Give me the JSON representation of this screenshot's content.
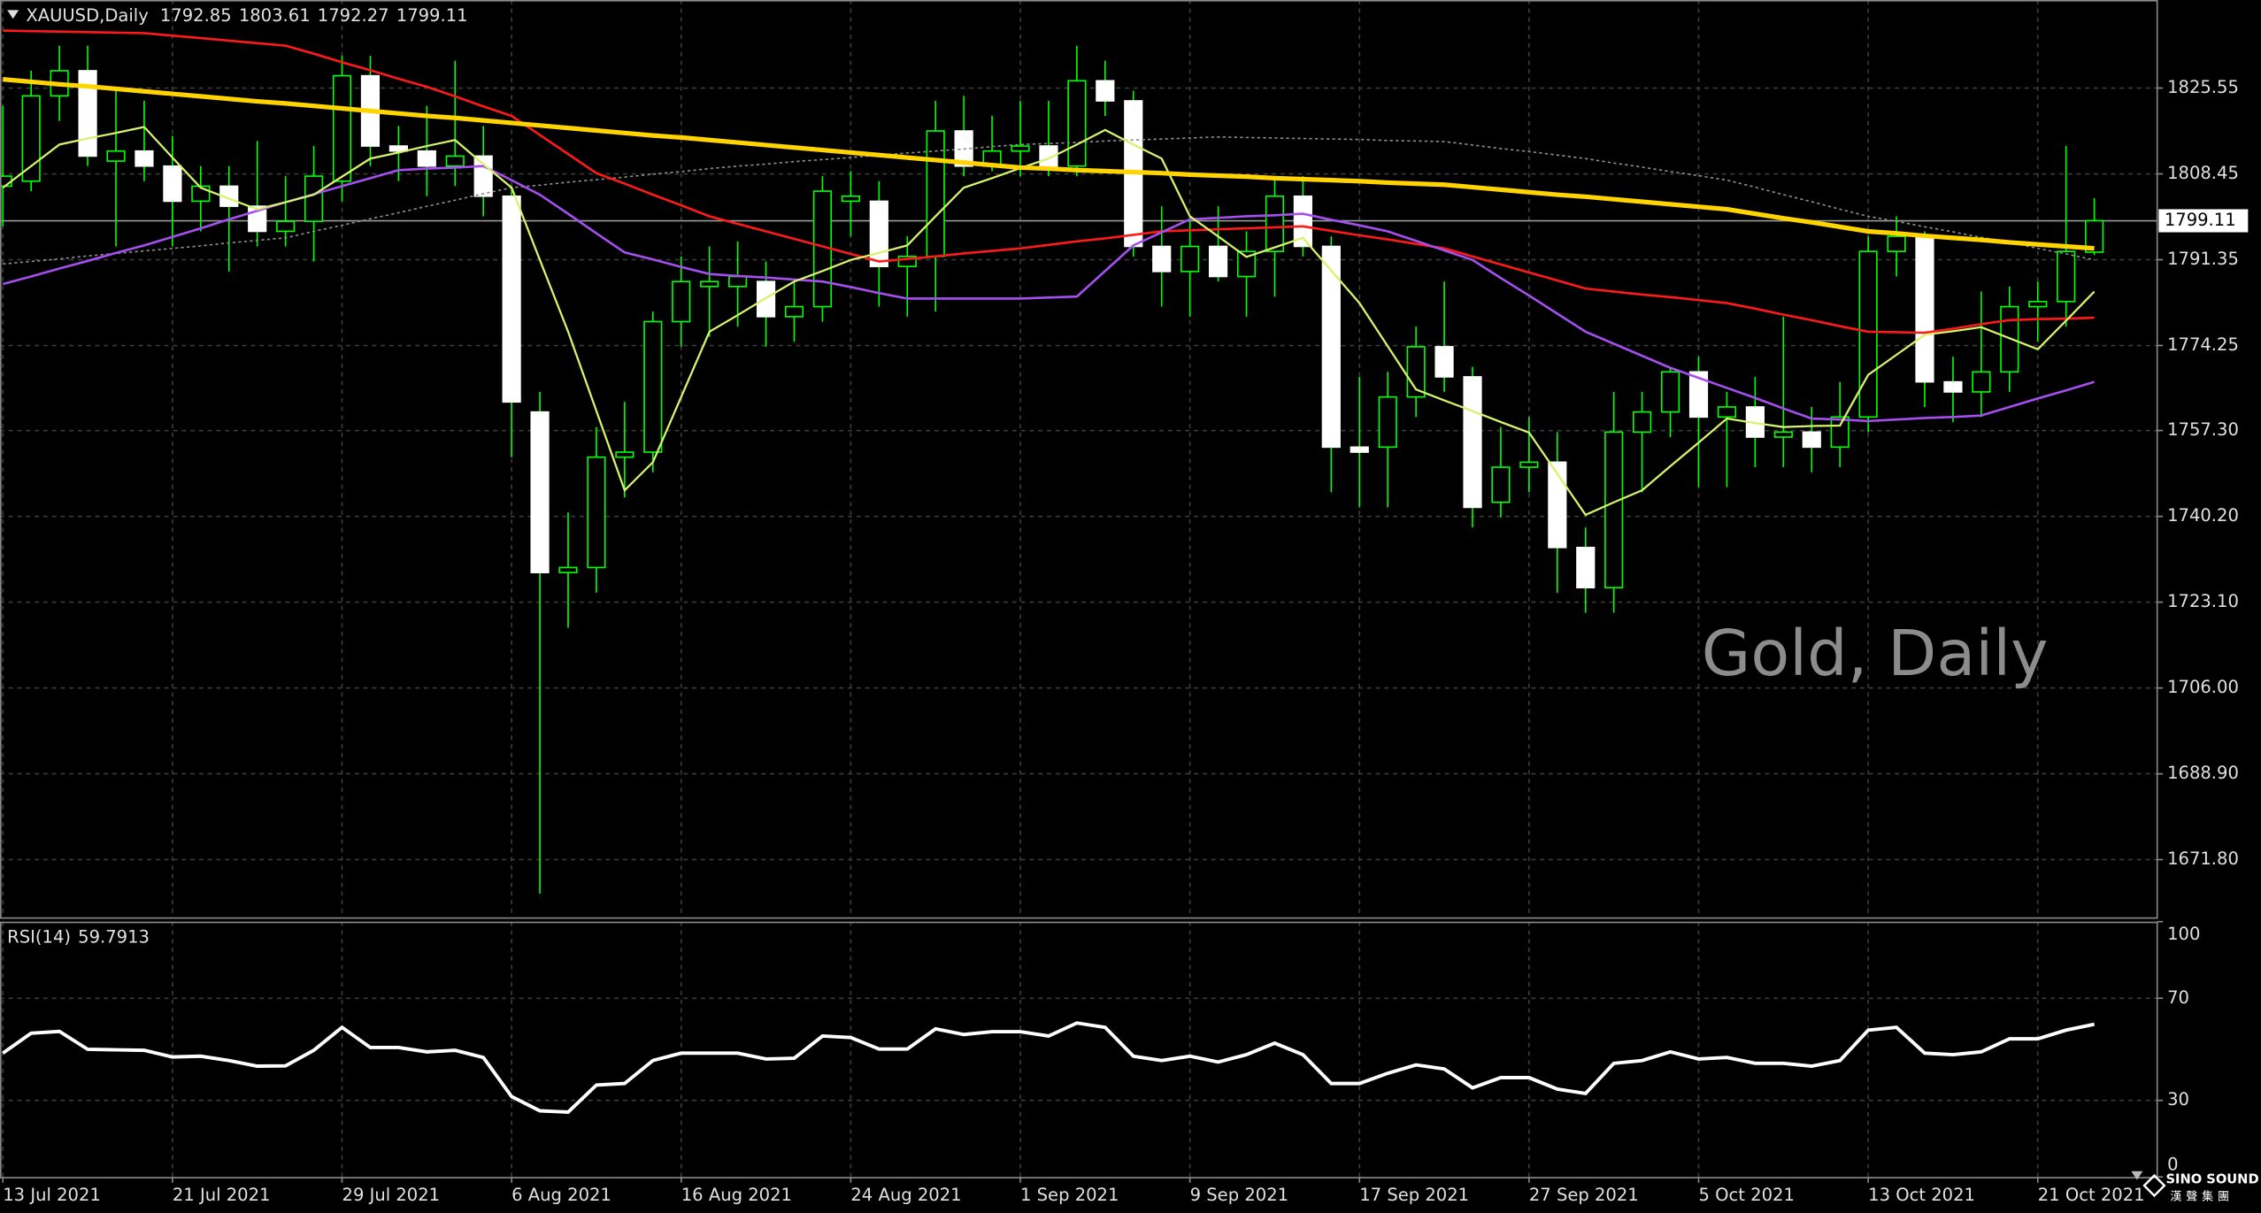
{
  "chart_data": [
    {
      "type": "candlestick",
      "title": "XAUUSD,Daily",
      "annotation": "Gold, Daily",
      "categories": [
        "13 Jul 2021",
        null,
        null,
        null,
        null,
        null,
        "21 Jul 2021",
        null,
        null,
        null,
        null,
        null,
        "29 Jul 2021",
        null,
        null,
        null,
        null,
        null,
        "6 Aug 2021",
        null,
        null,
        null,
        null,
        null,
        "16 Aug 2021",
        null,
        null,
        null,
        null,
        null,
        "24 Aug 2021",
        null,
        null,
        null,
        null,
        null,
        "1 Sep 2021",
        null,
        null,
        null,
        null,
        null,
        "9 Sep 2021",
        null,
        null,
        null,
        null,
        null,
        "17 Sep 2021",
        null,
        null,
        null,
        null,
        null,
        "27 Sep 2021",
        null,
        null,
        null,
        null,
        null,
        "5 Oct 2021",
        null,
        null,
        null,
        null,
        null,
        "13 Oct 2021",
        null,
        null,
        null,
        null,
        null,
        "21 Oct 2021",
        null,
        null
      ],
      "open": [
        1806,
        1807,
        1824,
        1829,
        1811,
        1813,
        1810,
        1803,
        1806,
        1802,
        1797,
        1799,
        1807,
        1828,
        1814,
        1813,
        1810,
        1812,
        1804,
        1761,
        1729,
        1730,
        1752,
        1753,
        1779,
        1786,
        1786,
        1787,
        1780,
        1782,
        1803,
        1803,
        1790,
        1792,
        1817,
        1810,
        1813,
        1814,
        1810,
        1827,
        1823,
        1794,
        1789,
        1794,
        1788,
        1793,
        1804,
        1794,
        1754,
        1754,
        1764,
        1774,
        1768,
        1743,
        1750,
        1751,
        1734,
        1726,
        1757,
        1761,
        1769,
        1760,
        1762,
        1756,
        1757,
        1754,
        1760,
        1793,
        1796,
        1767,
        1765,
        1769,
        1782,
        1783,
        1792.85
      ],
      "high": [
        1822,
        1829,
        1834,
        1834,
        1825,
        1823,
        1816,
        1810,
        1810,
        1815,
        1808,
        1814,
        1832,
        1832,
        1818,
        1822,
        1831,
        1818,
        1806,
        1765,
        1741,
        1758,
        1763,
        1781,
        1792,
        1794,
        1795,
        1791,
        1787,
        1808,
        1809,
        1807,
        1796,
        1823,
        1824,
        1820,
        1823,
        1823,
        1834,
        1831,
        1825,
        1802,
        1800,
        1802,
        1797,
        1808,
        1808,
        1796,
        1768,
        1769,
        1778,
        1787,
        1770,
        1758,
        1760,
        1757,
        1738,
        1765,
        1765,
        1770,
        1772,
        1765,
        1768,
        1780,
        1762,
        1767,
        1796,
        1800,
        1797,
        1772,
        1785,
        1786,
        1787,
        1814,
        1803.61
      ],
      "low": [
        1798,
        1805,
        1819,
        1810,
        1794,
        1807,
        1794,
        1797,
        1789,
        1794,
        1794,
        1791,
        1803,
        1810,
        1807,
        1804,
        1806,
        1800,
        1752,
        1665,
        1718,
        1725,
        1744,
        1749,
        1774,
        1776,
        1778,
        1774,
        1775,
        1779,
        1796,
        1782,
        1780,
        1781,
        1808,
        1809,
        1808,
        1808,
        1808,
        1820,
        1792,
        1782,
        1780,
        1787,
        1780,
        1784,
        1792,
        1745,
        1742,
        1742,
        1760,
        1765,
        1738,
        1740,
        1745,
        1725,
        1721,
        1721,
        1745,
        1756,
        1746,
        1746,
        1750,
        1750,
        1749,
        1750,
        1757,
        1788,
        1762,
        1759,
        1760,
        1765,
        1775,
        1778,
        1792.27
      ],
      "close": [
        1808,
        1824,
        1829,
        1812,
        1813,
        1810,
        1803,
        1806,
        1802,
        1797,
        1799,
        1808,
        1828,
        1814,
        1813,
        1810,
        1812,
        1804,
        1763,
        1729,
        1730,
        1752,
        1753,
        1779,
        1787,
        1787,
        1788,
        1780,
        1782,
        1805,
        1804,
        1790,
        1792,
        1817,
        1810,
        1813,
        1814,
        1810,
        1827,
        1823,
        1794,
        1789,
        1794,
        1788,
        1793,
        1804,
        1794,
        1754,
        1753,
        1764,
        1774,
        1768,
        1742,
        1750,
        1751,
        1734,
        1726,
        1757,
        1761,
        1769,
        1760,
        1762,
        1756,
        1757,
        1754,
        1760,
        1793,
        1796,
        1767,
        1765,
        1769,
        1782,
        1783,
        1793,
        1799.11
      ],
      "up_color": "#00ff00",
      "down_color": "#ffffff",
      "price_line": true,
      "moving_averages": [
        {
          "color": "#8c8c8c",
          "width": 1,
          "dash": true,
          "values": [
            1790.5,
            1791,
            1791.5,
            1792.1,
            1792.6,
            1793.1,
            1793.6,
            1794.1,
            1794.7,
            1795.2,
            1795.7,
            1797,
            1798.2,
            1799.5,
            1800.7,
            1802,
            1803.2,
            1804.5,
            1805.7,
            1806.2,
            1806.8,
            1807.3,
            1807.8,
            1808.4,
            1808.9,
            1809.5,
            1810,
            1810.4,
            1810.9,
            1811.3,
            1811.7,
            1812.2,
            1812.6,
            1813,
            1813.4,
            1813.9,
            1814.3,
            1814.5,
            1814.7,
            1815,
            1815.2,
            1815.4,
            1815.6,
            1815.8,
            1815.7,
            1815.6,
            1815.5,
            1815.4,
            1815.3,
            1815.1,
            1815,
            1814.9,
            1814.2,
            1813.5,
            1812.9,
            1812.2,
            1811.5,
            1810.6,
            1809.8,
            1808.9,
            1808.1,
            1807.2,
            1805.8,
            1804.3,
            1802.9,
            1801.4,
            1800,
            1799,
            1797.9,
            1796.9,
            1795.8,
            1794.8,
            1793.6,
            1792.5,
            1791.3
          ]
        },
        {
          "color": "#ff1a1a",
          "width": 1.6,
          "dash": false,
          "values": [
            1837,
            1836.9,
            1836.8,
            1836.7,
            1836.6,
            1836.5,
            1836,
            1835.5,
            1835,
            1834.5,
            1834,
            1832.4,
            1830.7,
            1829.1,
            1827.4,
            1825.8,
            1823.9,
            1821.9,
            1820,
            1816.2,
            1812.4,
            1808.6,
            1806.5,
            1804.3,
            1802.2,
            1800,
            1798.5,
            1797,
            1795.5,
            1794,
            1792.5,
            1791,
            1791.5,
            1792,
            1792.6,
            1793.1,
            1793.6,
            1794.3,
            1795,
            1795.6,
            1796.3,
            1797,
            1797.2,
            1797.4,
            1797.6,
            1797.8,
            1798,
            1797.1,
            1796.2,
            1795.4,
            1794.5,
            1793.6,
            1792,
            1790.4,
            1788.8,
            1787.2,
            1785.6,
            1785,
            1784.4,
            1783.9,
            1783.3,
            1782.7,
            1781.6,
            1780.4,
            1779.3,
            1778.1,
            1777,
            1776.9,
            1776.8,
            1777.6,
            1778.5,
            1779.3,
            1779.5,
            1779.6,
            1779.8
          ]
        },
        {
          "color": "#a64ff0",
          "width": 1.6,
          "dash": false,
          "values": [
            1786.5,
            1788,
            1789.6,
            1791.1,
            1792.7,
            1794.2,
            1795.9,
            1797.6,
            1799.4,
            1801.1,
            1802.8,
            1804.4,
            1806,
            1807.6,
            1809.2,
            1809.5,
            1809.7,
            1810,
            1807.2,
            1804.3,
            1800.5,
            1796.6,
            1792.8,
            1791.4,
            1789.9,
            1788.5,
            1788.1,
            1787.8,
            1787.4,
            1787,
            1785.9,
            1784.7,
            1783.6,
            1783.6,
            1783.6,
            1783.6,
            1783.6,
            1783.8,
            1784,
            1789.1,
            1794.2,
            1796.8,
            1799.4,
            1799.7,
            1800,
            1800.2,
            1800.5,
            1799.3,
            1798.2,
            1797,
            1795.1,
            1793.2,
            1791.3,
            1787.7,
            1784.2,
            1780.6,
            1777,
            1774.6,
            1772.2,
            1769.8,
            1767.8,
            1765.8,
            1763.8,
            1761.7,
            1759.7,
            1759.5,
            1759.2,
            1759.5,
            1759.8,
            1760,
            1760.3,
            1762,
            1763.7,
            1765.3,
            1767
          ]
        },
        {
          "color": "#d7f36b",
          "width": 1.4,
          "dash": false,
          "values": [
            1805.7,
            1810,
            1814.3,
            1815.5,
            1816.6,
            1817.8,
            1811.7,
            1805.7,
            1803.5,
            1801.4,
            1802.8,
            1804.3,
            1807.9,
            1811.5,
            1812.7,
            1814,
            1815.2,
            1810.4,
            1805.7,
            1791.3,
            1777,
            1761.2,
            1745.4,
            1751,
            1764,
            1777,
            1780.3,
            1783.7,
            1787,
            1789.1,
            1791.3,
            1792.7,
            1794.2,
            1800,
            1805.7,
            1807.6,
            1809.6,
            1811.5,
            1814.3,
            1817.2,
            1814.3,
            1811.5,
            1800,
            1796,
            1791.9,
            1793.8,
            1795.7,
            1789.2,
            1782.7,
            1774.1,
            1765.5,
            1763.3,
            1761.2,
            1759,
            1756.9,
            1748.7,
            1740.5,
            1743,
            1745.4,
            1750.2,
            1754.9,
            1759.7,
            1758.8,
            1758,
            1758.2,
            1758.3,
            1768.4,
            1772.4,
            1776.4,
            1777.1,
            1777.9,
            1775.7,
            1773.5,
            1779.2,
            1785
          ]
        },
        {
          "color": "#ffd400",
          "width": 3.2,
          "dash": false,
          "values": [
            1827.3,
            1826.8,
            1826.3,
            1825.9,
            1825.4,
            1824.9,
            1824.4,
            1823.9,
            1823.4,
            1822.9,
            1822.5,
            1822,
            1821.5,
            1821,
            1820.5,
            1820,
            1819.6,
            1819.1,
            1818.6,
            1818.1,
            1817.6,
            1817.1,
            1816.6,
            1816.1,
            1815.7,
            1815.2,
            1814.7,
            1814.2,
            1813.7,
            1813.2,
            1812.7,
            1812.2,
            1811.7,
            1811.2,
            1810.7,
            1810.2,
            1809.7,
            1809.5,
            1809.2,
            1809,
            1808.8,
            1808.6,
            1808.3,
            1808.1,
            1807.9,
            1807.6,
            1807.4,
            1807.2,
            1807,
            1806.7,
            1806.5,
            1806.3,
            1805.8,
            1805.3,
            1804.8,
            1804.3,
            1803.9,
            1803.4,
            1802.9,
            1802.4,
            1801.9,
            1801.4,
            1800.5,
            1799.6,
            1798.8,
            1797.9,
            1797,
            1796.6,
            1796.1,
            1795.7,
            1795.3,
            1794.8,
            1794.4,
            1794,
            1793.6
          ]
        }
      ],
      "ylim": [
        1660.3,
        1843.1
      ],
      "yticks": [
        {
          "value": 1671.8,
          "label": "1671.80"
        },
        {
          "value": 1688.9,
          "label": "1688.90"
        },
        {
          "value": 1706,
          "label": "1706.00"
        },
        {
          "value": 1723.1,
          "label": "1723.10"
        },
        {
          "value": 1740.2,
          "label": "1740.20"
        },
        {
          "value": 1757.3,
          "label": "1757.30"
        },
        {
          "value": 1774.25,
          "label": "1774.25"
        },
        {
          "value": 1791.35,
          "label": "1791.35"
        },
        {
          "value": 1808.45,
          "label": "1808.45"
        },
        {
          "value": 1825.55,
          "label": "1825.55"
        }
      ],
      "grid": true
    },
    {
      "type": "line",
      "title": "RSI(14)",
      "color": "#ffffff",
      "values": [
        48.5,
        56.3,
        57,
        50,
        49.8,
        49.6,
        47,
        47.3,
        45.6,
        43.4,
        43.5,
        49.6,
        58.6,
        50.7,
        50.7,
        49,
        49.6,
        46.8,
        31.5,
        25.9,
        25.4,
        36,
        36.6,
        45.6,
        48.5,
        48.5,
        48.5,
        46.2,
        46.5,
        55.2,
        54.6,
        50.1,
        50.1,
        58,
        55.8,
        56.9,
        56.9,
        55.2,
        60.3,
        58.6,
        47.3,
        45.6,
        47.3,
        45,
        47.9,
        52.4,
        47.9,
        36.6,
        36.6,
        40.6,
        43.9,
        42.3,
        34.9,
        38.9,
        38.9,
        34.4,
        32.7,
        44.5,
        45.6,
        49,
        46.2,
        46.8,
        44.5,
        44.5,
        43.4,
        45.6,
        57.5,
        58.6,
        48.5,
        47.9,
        49,
        54.1,
        54.1,
        57.5,
        59.7913
      ],
      "ylim": [
        0,
        100
      ],
      "yticks": [
        0,
        30,
        70,
        100
      ],
      "grid": true
    }
  ],
  "logo": {
    "text": "SINO SOUND",
    "subtext": "漢聲集團"
  }
}
